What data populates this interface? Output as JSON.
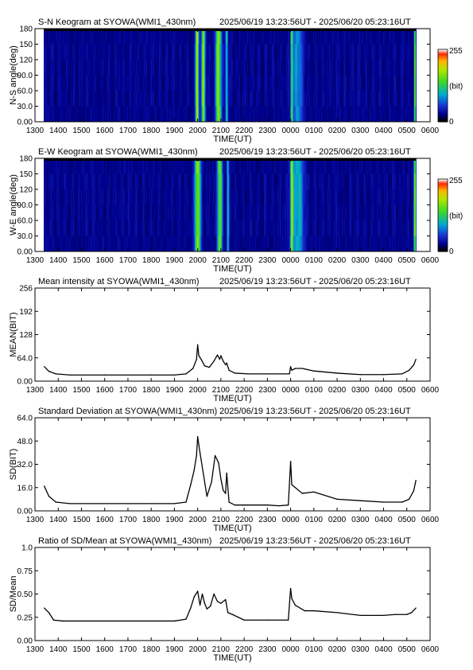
{
  "panels": [
    {
      "type": "heatmap",
      "title": "S-N Keogram at SYOWA(WMI1_430nm)",
      "time_range": "2025/06/19 13:23:56UT - 2025/06/20 05:23:16UT",
      "xlabel": "TIME(UT)",
      "ylabel": "N-S angle(deg)",
      "yticks": [
        "0.00",
        "30.0",
        "60.0",
        "90.0",
        "120",
        "150",
        "180"
      ],
      "colorbar": {
        "max_label": "255",
        "min_label": "0",
        "unit_label": "(bit)"
      }
    },
    {
      "type": "heatmap",
      "title": "E-W Keogram at SYOWA(WMI1_430nm)",
      "time_range": "2025/06/19 13:23:56UT - 2025/06/20 05:23:16UT",
      "xlabel": "TIME(UT)",
      "ylabel": "W-E angle(deg)",
      "yticks": [
        "0.00",
        "30.0",
        "60.0",
        "90.0",
        "120",
        "150",
        "180"
      ],
      "colorbar": {
        "max_label": "255",
        "min_label": "0",
        "unit_label": "(bit)"
      }
    },
    {
      "type": "line",
      "title": "Mean intensity at SYOWA(WMI1_430nm)",
      "time_range": "2025/06/19 13:23:56UT - 2025/06/20 05:23:16UT",
      "xlabel": "TIME(UT)",
      "ylabel": "MEAN(BIT)",
      "yticks": [
        "0.00",
        "64.0",
        "128",
        "192",
        "256"
      ]
    },
    {
      "type": "line",
      "title": "Standard Deviation at SYOWA(WMI1_430nm)",
      "time_range": "2025/06/19 13:23:56UT - 2025/06/20 05:23:16UT",
      "xlabel": "TIME(UT)",
      "ylabel": "SD(BIT)",
      "yticks": [
        "0.00",
        "16.0",
        "32.0",
        "48.0",
        "64.0"
      ]
    },
    {
      "type": "line",
      "title": "Ratio of SD/Mean at SYOWA(WMI1_430nm)",
      "time_range": "2025/06/19 13:23:56UT - 2025/06/20 05:23:16UT",
      "xlabel": "TIME(UT)",
      "ylabel": "SD/Mean",
      "yticks": [
        "0.00",
        "0.25",
        "0.50",
        "0.75",
        "1.0"
      ]
    }
  ],
  "xticks": [
    "1300",
    "1400",
    "1500",
    "1600",
    "1700",
    "1800",
    "1900",
    "2000",
    "2100",
    "2200",
    "2300",
    "0000",
    "0100",
    "0200",
    "0300",
    "0400",
    "0500",
    "0600"
  ],
  "colors": {
    "keogram_bg": "#1a37c8",
    "aurora_green": "#5fe31e",
    "line": "#000000"
  },
  "chart_data": [
    {
      "type": "heatmap",
      "title": "S-N Keogram at SYOWA(WMI1_430nm)",
      "xlabel": "TIME(UT)",
      "ylabel": "N-S angle(deg)",
      "xlim": [
        13.0,
        30.0
      ],
      "ylim": [
        0,
        180
      ],
      "zlim": [
        0,
        255
      ],
      "data_start": 13.399,
      "data_end": 29.388,
      "background": 30,
      "bright_bands": [
        {
          "t": 19.98,
          "width": 0.07,
          "value": 190
        },
        {
          "t": 20.25,
          "width": 0.08,
          "value": 160
        },
        {
          "t": 20.9,
          "width": 0.12,
          "value": 170
        },
        {
          "t": 21.25,
          "width": 0.05,
          "value": 110
        },
        {
          "t": 24.05,
          "width": 0.05,
          "value": 140
        },
        {
          "t": 24.3,
          "width": 0.2,
          "value": 75
        },
        {
          "t": 29.35,
          "width": 0.04,
          "value": 150
        }
      ]
    },
    {
      "type": "heatmap",
      "title": "E-W Keogram at SYOWA(WMI1_430nm)",
      "xlabel": "TIME(UT)",
      "ylabel": "W-E angle(deg)",
      "xlim": [
        13.0,
        30.0
      ],
      "ylim": [
        0,
        180
      ],
      "zlim": [
        0,
        255
      ],
      "data_start": 13.399,
      "data_end": 29.388,
      "background": 30,
      "bright_bands": [
        {
          "t": 20.0,
          "width": 0.12,
          "value": 175
        },
        {
          "t": 20.95,
          "width": 0.1,
          "value": 165
        },
        {
          "t": 21.3,
          "width": 0.05,
          "value": 90
        },
        {
          "t": 24.05,
          "width": 0.06,
          "value": 150
        },
        {
          "t": 24.3,
          "width": 0.25,
          "value": 90
        },
        {
          "t": 29.35,
          "width": 0.05,
          "value": 150
        }
      ]
    },
    {
      "type": "line",
      "title": "Mean intensity at SYOWA(WMI1_430nm)",
      "xlabel": "TIME(UT)",
      "ylabel": "MEAN(BIT)",
      "xlim": [
        13.0,
        30.0
      ],
      "ylim": [
        0,
        256
      ],
      "x": [
        13.4,
        13.6,
        13.9,
        14.5,
        16,
        18,
        19.0,
        19.5,
        19.8,
        19.95,
        20.0,
        20.05,
        20.15,
        20.3,
        20.5,
        20.7,
        20.85,
        20.95,
        21.0,
        21.1,
        21.2,
        21.25,
        21.35,
        21.6,
        22.2,
        23.0,
        23.6,
        23.95,
        24.0,
        24.05,
        24.2,
        24.5,
        25.0,
        26.0,
        27.0,
        28.0,
        28.8,
        29.1,
        29.3,
        29.39
      ],
      "y": [
        40,
        27,
        20,
        17,
        17,
        17,
        17,
        20,
        35,
        60,
        100,
        70,
        60,
        42,
        38,
        55,
        72,
        60,
        70,
        55,
        45,
        50,
        30,
        22,
        20,
        20,
        20,
        20,
        40,
        30,
        35,
        35,
        28,
        22,
        18,
        18,
        20,
        30,
        45,
        60
      ]
    },
    {
      "type": "line",
      "title": "Standard Deviation at SYOWA(WMI1_430nm)",
      "xlabel": "TIME(UT)",
      "ylabel": "SD(BIT)",
      "xlim": [
        13.0,
        30.0
      ],
      "ylim": [
        0,
        64
      ],
      "x": [
        13.4,
        13.6,
        13.9,
        14.5,
        16,
        18,
        19.0,
        19.5,
        19.7,
        19.85,
        19.95,
        20.0,
        20.1,
        20.25,
        20.4,
        20.6,
        20.75,
        20.9,
        21.0,
        21.1,
        21.2,
        21.25,
        21.35,
        21.6,
        22.0,
        22.5,
        23.0,
        23.5,
        23.9,
        24.0,
        24.05,
        24.2,
        24.5,
        25.0,
        26.0,
        27.0,
        28.0,
        28.8,
        29.1,
        29.3,
        29.39
      ],
      "y": [
        17,
        10,
        6,
        5,
        5,
        5,
        5,
        6,
        18,
        28,
        38,
        51,
        40,
        25,
        10,
        20,
        38,
        33,
        22,
        14,
        12,
        26,
        6,
        4,
        4,
        4,
        4,
        3.5,
        4,
        34,
        18,
        16,
        12,
        13,
        8,
        7,
        6,
        6,
        8,
        14,
        21
      ]
    },
    {
      "type": "line",
      "title": "Ratio of SD/Mean at SYOWA(WMI1_430nm)",
      "xlabel": "TIME(UT)",
      "ylabel": "SD/Mean",
      "xlim": [
        13.0,
        30.0
      ],
      "ylim": [
        0,
        1.0
      ],
      "x": [
        13.4,
        13.6,
        13.8,
        14.2,
        15,
        16,
        18,
        19.0,
        19.5,
        19.7,
        19.85,
        20.0,
        20.1,
        20.2,
        20.3,
        20.4,
        20.55,
        20.7,
        20.85,
        21.0,
        21.2,
        21.3,
        21.5,
        22.0,
        23.0,
        23.9,
        24.0,
        24.05,
        24.2,
        24.6,
        25.0,
        26.0,
        27.0,
        28.0,
        28.5,
        29.0,
        29.2,
        29.39
      ],
      "y": [
        0.35,
        0.3,
        0.22,
        0.21,
        0.21,
        0.21,
        0.21,
        0.21,
        0.23,
        0.35,
        0.47,
        0.53,
        0.38,
        0.5,
        0.4,
        0.34,
        0.37,
        0.5,
        0.42,
        0.4,
        0.44,
        0.3,
        0.28,
        0.22,
        0.22,
        0.22,
        0.56,
        0.45,
        0.38,
        0.32,
        0.32,
        0.3,
        0.27,
        0.27,
        0.28,
        0.28,
        0.3,
        0.35
      ]
    }
  ]
}
